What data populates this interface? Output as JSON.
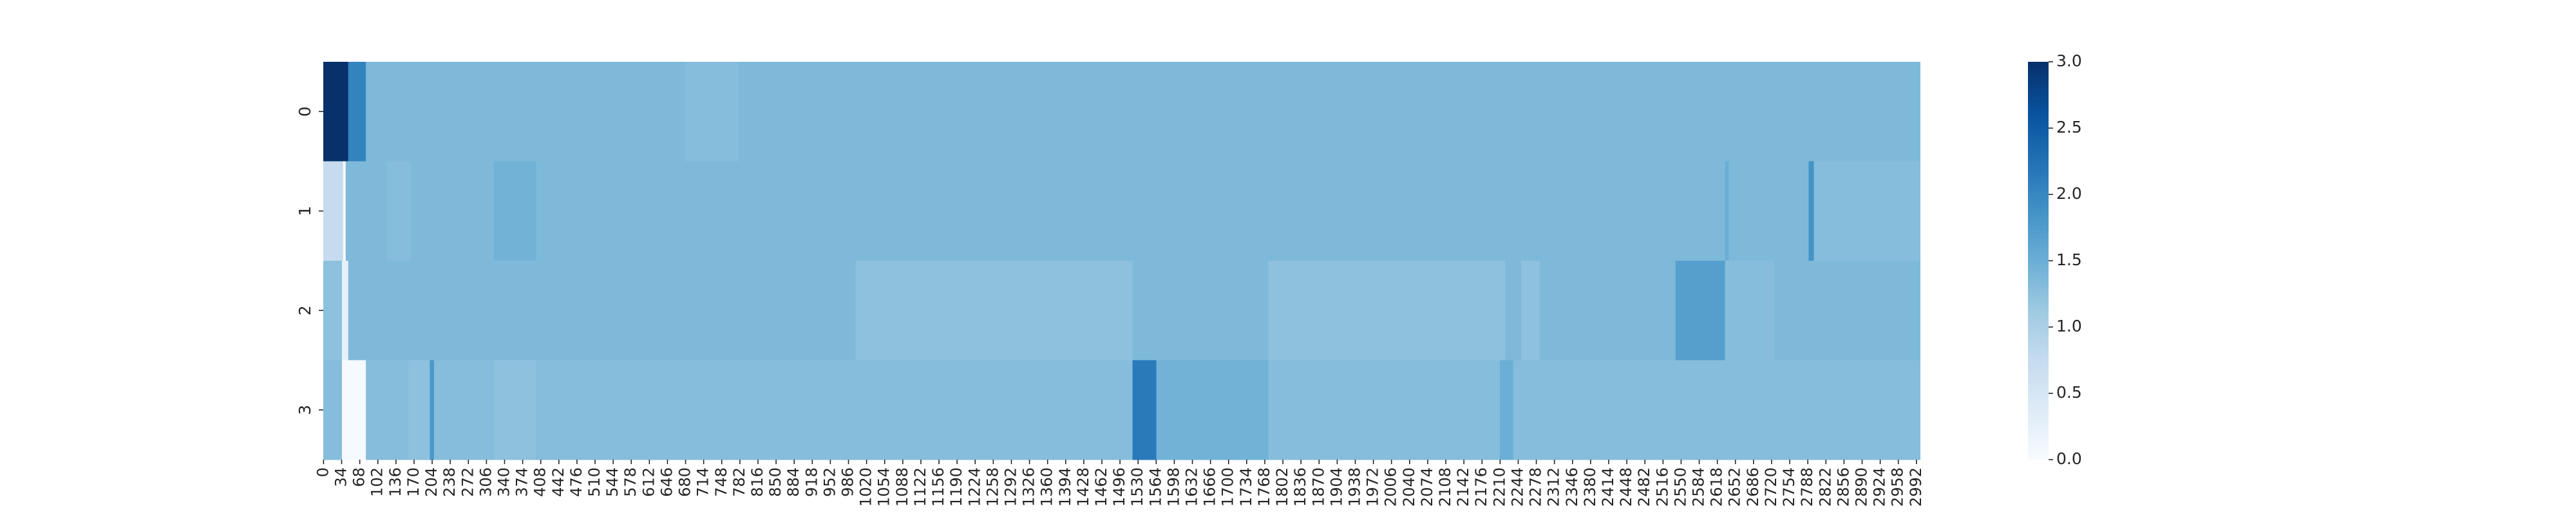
{
  "chart_data": {
    "type": "heatmap",
    "title": "",
    "xlabel": "",
    "ylabel": "",
    "x_range": [
      0,
      3000
    ],
    "x_tick_labels": [
      "0",
      "34",
      "68",
      "102",
      "136",
      "170",
      "204",
      "238",
      "272",
      "306",
      "340",
      "374",
      "408",
      "442",
      "476",
      "510",
      "544",
      "578",
      "612",
      "646",
      "680",
      "714",
      "748",
      "782",
      "816",
      "850",
      "884",
      "918",
      "952",
      "986",
      "1020",
      "1054",
      "1088",
      "1122",
      "1156",
      "1190",
      "1224",
      "1258",
      "1292",
      "1326",
      "1360",
      "1394",
      "1428",
      "1462",
      "1496",
      "1530",
      "1564",
      "1598",
      "1632",
      "1666",
      "1700",
      "1734",
      "1768",
      "1802",
      "1836",
      "1870",
      "1904",
      "1938",
      "1972",
      "2006",
      "2040",
      "2074",
      "2108",
      "2142",
      "2176",
      "2210",
      "2244",
      "2278",
      "2312",
      "2346",
      "2380",
      "2414",
      "2448",
      "2482",
      "2516",
      "2550",
      "2584",
      "2618",
      "2652",
      "2686",
      "2720",
      "2754",
      "2788",
      "2822",
      "2856",
      "2890",
      "2924",
      "2958",
      "2992"
    ],
    "y_tick_labels": [
      "0",
      "1",
      "2",
      "3"
    ],
    "colormap": [
      "#f7fbff",
      "#deebf7",
      "#c6dbef",
      "#9ecae1",
      "#6baed6",
      "#4292c6",
      "#2171b5",
      "#08519c",
      "#08306b"
    ],
    "vmin": 0,
    "vmax": 3.0,
    "colorbar_ticks": [
      "0.0",
      "0.5",
      "1.0",
      "1.5",
      "2.0",
      "2.5",
      "3.0"
    ],
    "rows": [
      {
        "name": "0",
        "default": 1.35,
        "segments": [
          [
            0,
            47,
            3.0
          ],
          [
            47,
            80,
            2.05
          ],
          [
            680,
            780,
            1.3
          ]
        ]
      },
      {
        "name": "1",
        "default": 1.35,
        "segments": [
          [
            0,
            37,
            0.75
          ],
          [
            37,
            42,
            0.02
          ],
          [
            120,
            165,
            1.3
          ],
          [
            320,
            400,
            1.45
          ],
          [
            2633,
            2640,
            1.5
          ],
          [
            2790,
            2800,
            1.85
          ],
          [
            2800,
            3000,
            1.3
          ]
        ]
      },
      {
        "name": "2",
        "default": 1.35,
        "segments": [
          [
            0,
            35,
            1.25
          ],
          [
            35,
            47,
            0.25
          ],
          [
            47,
            80,
            1.35
          ],
          [
            1000,
            1520,
            1.25
          ],
          [
            1775,
            2220,
            1.25
          ],
          [
            2250,
            2285,
            1.25
          ],
          [
            2540,
            2633,
            1.7
          ],
          [
            2633,
            2725,
            1.3
          ]
        ]
      },
      {
        "name": "3",
        "default": 1.3,
        "segments": [
          [
            0,
            35,
            1.3
          ],
          [
            35,
            80,
            0.02
          ],
          [
            160,
            205,
            1.25
          ],
          [
            200,
            208,
            1.8
          ],
          [
            208,
            280,
            1.3
          ],
          [
            320,
            400,
            1.25
          ],
          [
            1520,
            1565,
            2.15
          ],
          [
            1565,
            1775,
            1.45
          ],
          [
            2210,
            2235,
            1.5
          ]
        ]
      }
    ]
  }
}
